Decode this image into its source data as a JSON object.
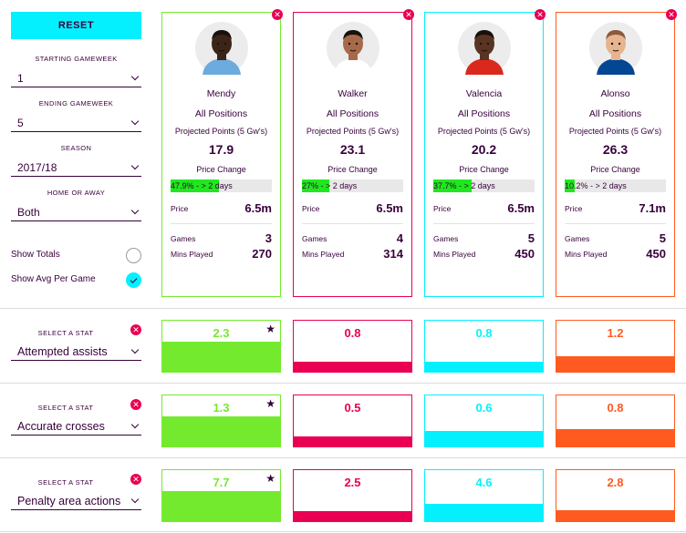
{
  "sidebar": {
    "reset_label": "RESET",
    "starting_gameweek": {
      "label": "STARTING GAMEWEEK",
      "value": "1"
    },
    "ending_gameweek": {
      "label": "ENDING GAMEWEEK",
      "value": "5"
    },
    "season": {
      "label": "SEASON",
      "value": "2017/18"
    },
    "home_or_away": {
      "label": "HOME OR AWAY",
      "value": "Both"
    },
    "show_totals": {
      "label": "Show Totals",
      "checked": false
    },
    "show_avg": {
      "label": "Show Avg Per Game",
      "checked": true
    }
  },
  "players": [
    {
      "name": "Mendy",
      "position": "All Positions",
      "color": "#74ea2f",
      "projected_label": "Projected Points (5 Gw's)",
      "projected_value": "17.9",
      "price_change_label": "Price Change",
      "price_change_text": "47.9% - > 2 days",
      "price_change_pct": 47.9,
      "price_label": "Price",
      "price_value": "6.5m",
      "games_label": "Games",
      "games_value": "3",
      "mins_label": "Mins Played",
      "mins_value": "270",
      "skin": "#3b2418",
      "shirt": "#6cabdd",
      "hair": "#1a100c"
    },
    {
      "name": "Walker",
      "position": "All Positions",
      "color": "#e90052",
      "projected_label": "Projected Points (5 Gw's)",
      "projected_value": "23.1",
      "price_change_label": "Price Change",
      "price_change_text": "27% - > 2 days",
      "price_change_pct": 27,
      "price_label": "Price",
      "price_value": "6.5m",
      "games_label": "Games",
      "games_value": "4",
      "mins_label": "Mins Played",
      "mins_value": "314",
      "skin": "#a66a4a",
      "shirt": "#ffffff",
      "hair": "#1a100c"
    },
    {
      "name": "Valencia",
      "position": "All Positions",
      "color": "#05f0ff",
      "projected_label": "Projected Points (5 Gw's)",
      "projected_value": "20.2",
      "price_change_label": "Price Change",
      "price_change_text": "37.7% - > 2 days",
      "price_change_pct": 37.7,
      "price_label": "Price",
      "price_value": "6.5m",
      "games_label": "Games",
      "games_value": "5",
      "mins_label": "Mins Played",
      "mins_value": "450",
      "skin": "#5a3422",
      "shirt": "#da291c",
      "hair": "#1a100c"
    },
    {
      "name": "Alonso",
      "position": "All Positions",
      "color": "#ff5a1f",
      "projected_label": "Projected Points (5 Gw's)",
      "projected_value": "26.3",
      "price_change_label": "Price Change",
      "price_change_text": "10.2% - > 2 days",
      "price_change_pct": 10.2,
      "price_label": "Price",
      "price_value": "7.1m",
      "games_label": "Games",
      "games_value": "5",
      "mins_label": "Mins Played",
      "mins_value": "450",
      "skin": "#e6b48f",
      "shirt": "#034694",
      "hair": "#8a5a3a"
    }
  ],
  "stat_rows": [
    {
      "select_label": "SELECT A STAT",
      "stat": "Attempted assists",
      "values": [
        "2.3",
        "0.8",
        "0.8",
        "1.2"
      ],
      "fractions": [
        0.6,
        0.2,
        0.2,
        0.3
      ],
      "best_index": 0
    },
    {
      "select_label": "SELECT A STAT",
      "stat": "Accurate crosses",
      "values": [
        "1.3",
        "0.5",
        "0.6",
        "0.8"
      ],
      "fractions": [
        0.6,
        0.2,
        0.3,
        0.35
      ],
      "best_index": 0
    },
    {
      "select_label": "SELECT A STAT",
      "stat": "Penalty area actions",
      "values": [
        "7.7",
        "2.5",
        "4.6",
        "2.8"
      ],
      "fractions": [
        0.6,
        0.2,
        0.35,
        0.22
      ],
      "best_index": 0
    }
  ],
  "icons": {
    "remove": "close-icon",
    "best": "star-icon",
    "dropdown": "chevron-down-icon"
  }
}
